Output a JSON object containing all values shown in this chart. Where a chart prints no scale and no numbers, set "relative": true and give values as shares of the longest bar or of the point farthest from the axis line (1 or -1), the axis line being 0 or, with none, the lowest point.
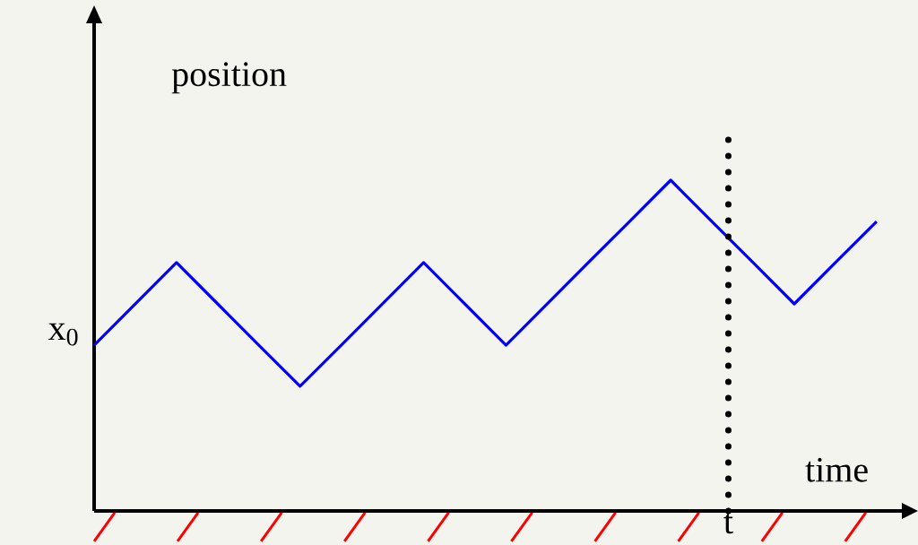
{
  "chart_data": {
    "type": "line",
    "relative": true,
    "xlabel": "time",
    "ylabel": "position",
    "categories": [
      null,
      null,
      null,
      null,
      null,
      null,
      null,
      null,
      null,
      null,
      null,
      null,
      null,
      null,
      null,
      null,
      null,
      null,
      null,
      null
    ],
    "series": [
      {
        "color": "#0000ff",
        "values": [
          0.501,
          0.626,
          0.751,
          0.626,
          0.501,
          0.377,
          0.501,
          0.626,
          0.751,
          0.626,
          0.501,
          0.626,
          0.751,
          0.875,
          1,
          0.875,
          0.751,
          0.626,
          0.751,
          0.875
        ]
      }
    ],
    "marker": "none",
    "line_style": "solid",
    "annotations": [
      "x$_{0}$",
      "t"
    ]
  }
}
